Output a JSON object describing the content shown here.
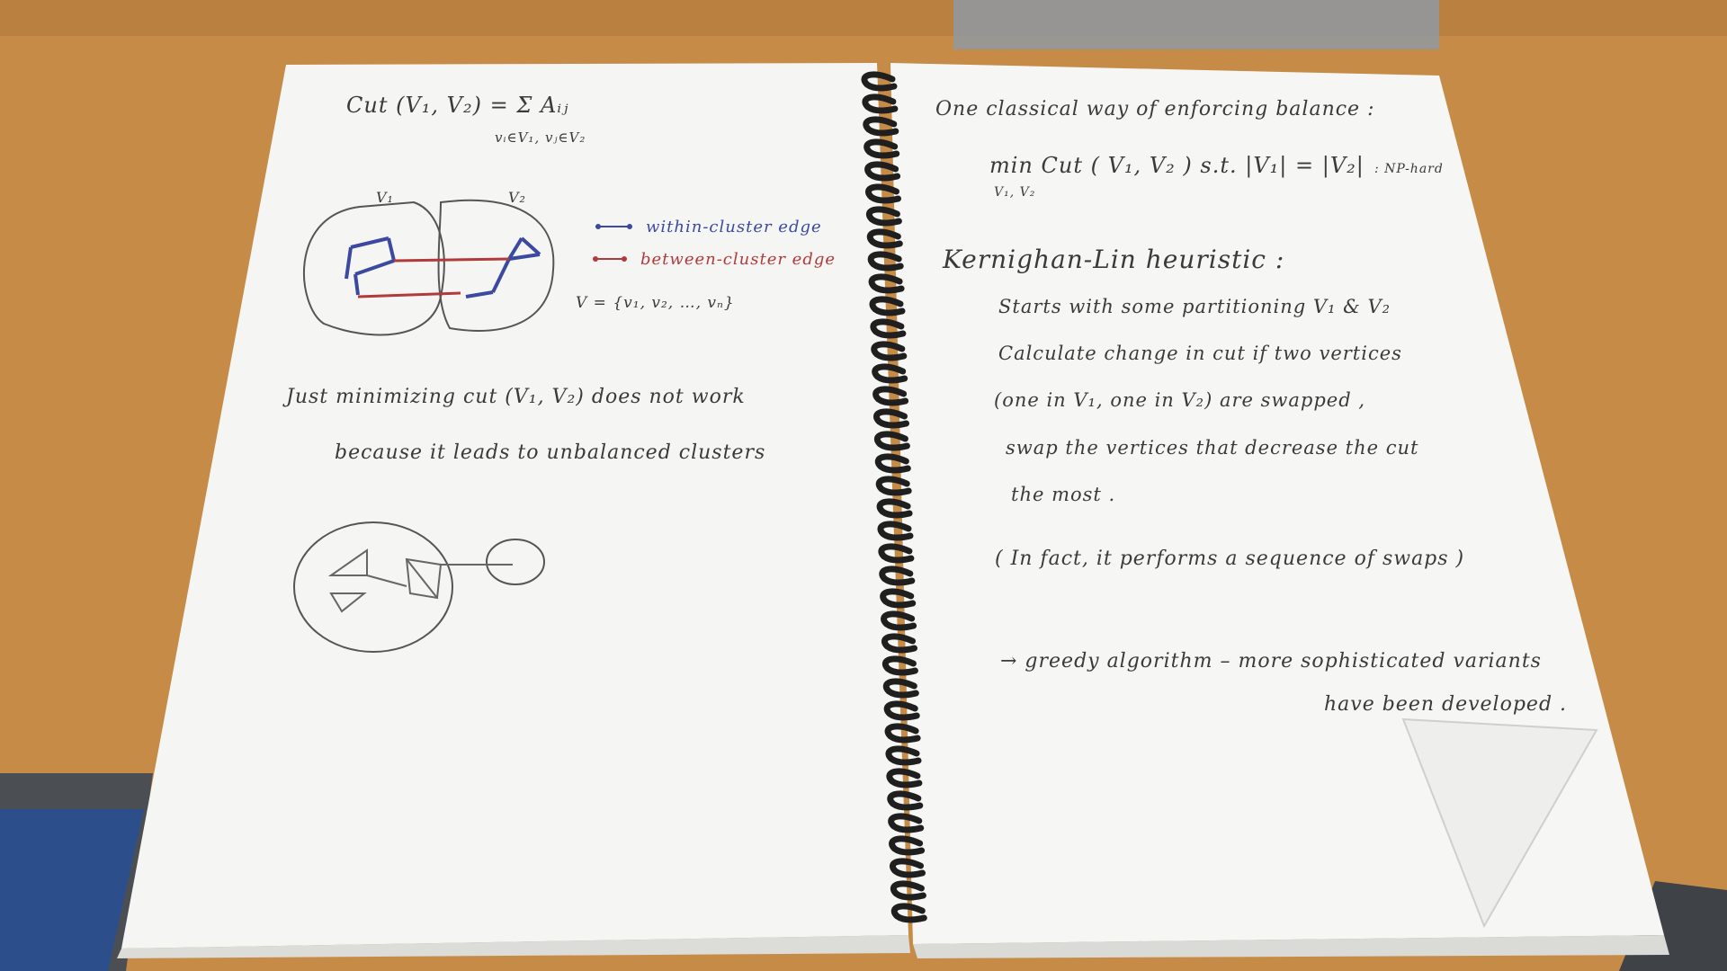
{
  "photo": {
    "subject": "notebook",
    "colors": {
      "desk": "#c58a45",
      "paper": "#f4f4f2",
      "ink": "#3a3a3a",
      "blue_ink": "#3b4aa0",
      "red_ink": "#b23a3a",
      "spiral": "#222222"
    }
  },
  "left_page": {
    "cut_def": "Cut (V₁, V₂) = Σ Aᵢⱼ",
    "cut_def_sub": "vᵢ∈V₁, vⱼ∈V₂",
    "v1_label": "V₁",
    "v2_label": "V₂",
    "legend_within": "within-cluster edge",
    "legend_between": "between-cluster edge",
    "vertex_set": "V = {v₁, v₂, …, vₙ}",
    "note_line1": "Just minimizing cut (V₁, V₂) does not work",
    "note_line2": "because it leads to unbalanced clusters"
  },
  "right_page": {
    "line1": "One classical way of enforcing balance :",
    "line2": "min  Cut ( V₁, V₂ )   s.t.   |V₁| = |V₂|",
    "line2_sub": "V₁, V₂",
    "line2_tag": ": NP-hard",
    "heading": "Kernighan-Lin heuristic :",
    "step1": "Starts with some partitioning  V₁ & V₂",
    "step2": "Calculate change in cut  if two vertices",
    "step3": "(one in V₁, one in V₂) are swapped ,",
    "step4": "swap the vertices that decrease the cut",
    "step5": "the most .",
    "fact": "( In fact,  it performs a sequence of swaps )",
    "greedy": "→ greedy  algorithm – more sophisticated variants",
    "greedy2": "have been developed ."
  }
}
